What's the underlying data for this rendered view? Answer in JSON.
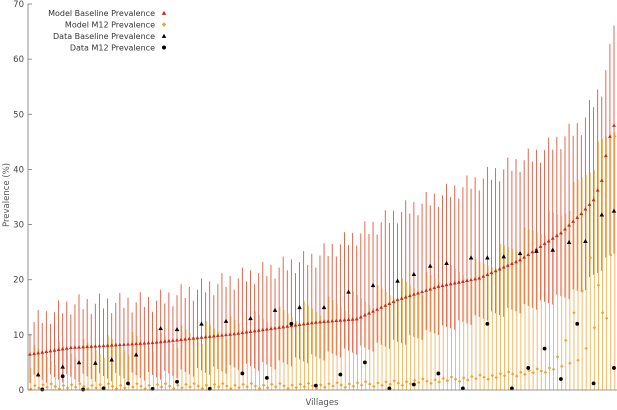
{
  "chart_data": {
    "type": "scatter",
    "title": "",
    "xlabel": "Villages",
    "ylabel": "Prevalence (%)",
    "ylim": [
      0,
      70
    ],
    "yticks": [
      0,
      10,
      20,
      30,
      40,
      50,
      60,
      70
    ],
    "grid": false,
    "legend_position": "top-left",
    "colors": {
      "model_baseline": "#cc2a18",
      "model_m12": "#f0a032",
      "baseline_bar": "#e0573a",
      "m12_bar": "#f4b357",
      "data": "#000000",
      "axis": "#777777"
    },
    "series": [
      {
        "name": "Model Baseline Prevalence",
        "marker": "triangle",
        "color": "#cc2a18"
      },
      {
        "name": "Model M12 Prevalence",
        "marker": "diamond",
        "color": "#f0a032"
      },
      {
        "name": "Data Baseline Prevalence",
        "marker": "triangle",
        "color": "#000000"
      },
      {
        "name": "Data M12 Prevalence",
        "marker": "circle",
        "color": "#000000"
      }
    ],
    "n_villages": 144,
    "model_baseline": {
      "median_anchors": [
        [
          0,
          6.5
        ],
        [
          10,
          7.7
        ],
        [
          30,
          8.6
        ],
        [
          50,
          10.2
        ],
        [
          70,
          12.3
        ],
        [
          80,
          12.9
        ],
        [
          90,
          16.4
        ],
        [
          100,
          18.8
        ],
        [
          110,
          20.3
        ],
        [
          120,
          23.6
        ],
        [
          130,
          28.5
        ],
        [
          135,
          32.0
        ],
        [
          138,
          34.5
        ],
        [
          140,
          38.0
        ],
        [
          141,
          42.5
        ],
        [
          142,
          46.0
        ],
        [
          143,
          48.0
        ]
      ],
      "upper_anchors": [
        [
          0,
          12.0
        ],
        [
          10,
          15.5
        ],
        [
          30,
          16.0
        ],
        [
          50,
          20.0
        ],
        [
          70,
          24.0
        ],
        [
          90,
          32.0
        ],
        [
          110,
          38.0
        ],
        [
          125,
          43.0
        ],
        [
          135,
          48.0
        ],
        [
          140,
          55.0
        ],
        [
          142,
          61.0
        ],
        [
          143,
          67.0
        ]
      ],
      "lower_anchors": [
        [
          0,
          2.0
        ],
        [
          30,
          2.5
        ],
        [
          60,
          4.5
        ],
        [
          90,
          8.5
        ],
        [
          110,
          13.0
        ],
        [
          125,
          15.5
        ],
        [
          135,
          18.0
        ],
        [
          143,
          25.0
        ]
      ]
    },
    "model_m12": {
      "base_anchors": [
        [
          0,
          0.2
        ],
        [
          70,
          0.3
        ],
        [
          90,
          0.8
        ],
        [
          110,
          1.8
        ],
        [
          125,
          3.0
        ],
        [
          135,
          5.0
        ],
        [
          140,
          14.0
        ],
        [
          143,
          25.0
        ]
      ],
      "upper_anchors": [
        [
          0,
          6.0
        ],
        [
          40,
          10.0
        ],
        [
          80,
          16.0
        ],
        [
          110,
          22.0
        ],
        [
          130,
          32.0
        ],
        [
          143,
          48.0
        ]
      ],
      "highlights": [
        [
          129,
          6.0
        ],
        [
          131,
          9.0
        ],
        [
          133,
          14.0
        ],
        [
          135,
          18.0
        ],
        [
          137,
          24.0
        ],
        [
          139,
          19.0
        ],
        [
          141,
          13.0
        ],
        [
          142,
          24.5
        ],
        [
          143,
          46.0
        ]
      ]
    },
    "data_baseline": {
      "x": [
        2,
        8,
        12,
        16,
        20,
        26,
        32,
        36,
        42,
        48,
        54,
        60,
        66,
        72,
        78,
        84,
        90,
        94,
        98,
        102,
        108,
        112,
        116,
        120,
        124,
        128,
        132,
        136,
        140,
        143
      ],
      "y": [
        2.8,
        4.2,
        5.0,
        4.9,
        5.5,
        6.4,
        11.2,
        11.0,
        12.0,
        12.5,
        13.0,
        14.5,
        15.0,
        15.0,
        17.8,
        19.0,
        19.8,
        21.0,
        22.5,
        23.0,
        24.0,
        24.0,
        24.2,
        24.8,
        25.2,
        25.4,
        26.8,
        27.0,
        31.8,
        32.5
      ]
    },
    "data_m12": {
      "x": [
        3,
        8,
        13,
        18,
        24,
        30,
        36,
        44,
        52,
        58,
        64,
        70,
        76,
        82,
        88,
        94,
        100,
        106,
        112,
        118,
        122,
        126,
        130,
        134,
        138,
        143
      ],
      "y": [
        0.1,
        2.5,
        0.1,
        0.3,
        1.2,
        0.2,
        1.5,
        0.2,
        3.0,
        2.2,
        12.0,
        0.8,
        2.8,
        5.0,
        0.3,
        1.0,
        3.0,
        0.3,
        12.0,
        0.3,
        4.0,
        7.5,
        2.0,
        12.0,
        1.2,
        4.0
      ]
    }
  }
}
